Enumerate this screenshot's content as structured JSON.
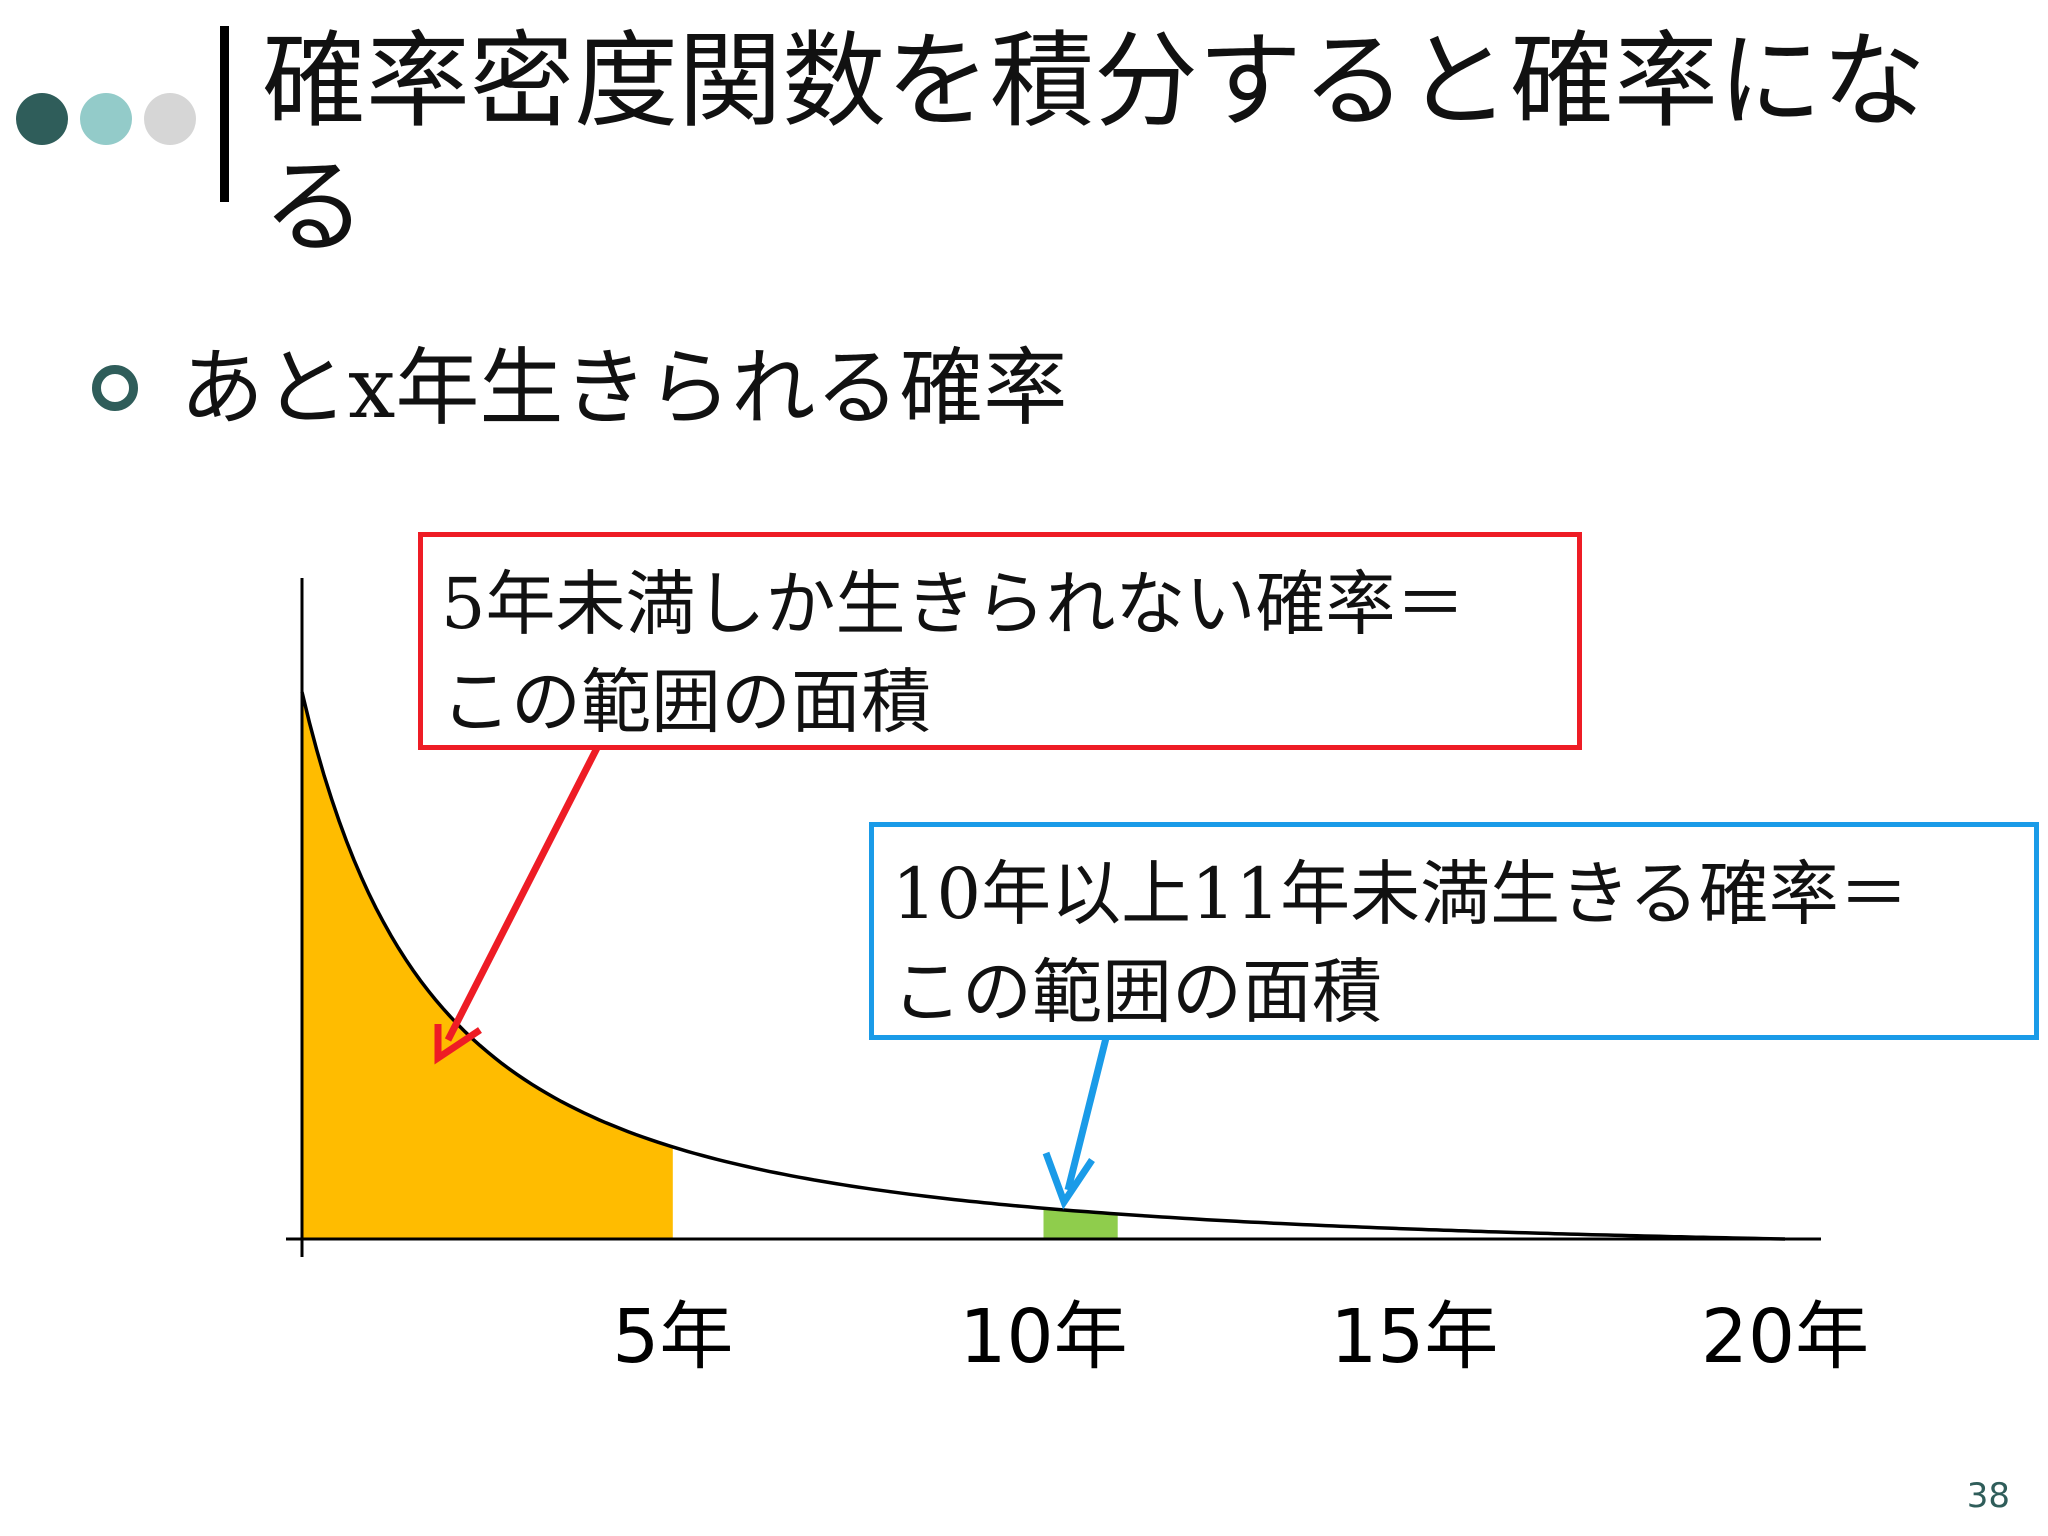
{
  "slide": {
    "title": "確率密度関数を積分すると確率になる",
    "bullet": "あとx年生きられる確率",
    "page_number": "38"
  },
  "decor": {
    "dot_colors": [
      "#2f5d5a",
      "#93cbc9",
      "#d6d6d6"
    ],
    "accent": "#2f5d5a"
  },
  "callouts": {
    "red": {
      "line1": "5年未満しか生きられない確率＝",
      "line2": "この範囲の面積",
      "border_color": "#ee1c25"
    },
    "blue": {
      "line1": "10年以上11年未満生きる確率＝",
      "line2": "この範囲の面積",
      "border_color": "#1a9be8"
    }
  },
  "chart_data": {
    "type": "area",
    "curve": "decreasing probability density of remaining years",
    "x_range": [
      0,
      20
    ],
    "x_ticks": [
      {
        "value": 5,
        "label": "5年"
      },
      {
        "value": 10,
        "label": "10年"
      },
      {
        "value": 15,
        "label": "15年"
      },
      {
        "value": 20,
        "label": "20年"
      }
    ],
    "shaded_regions": [
      {
        "from": 0,
        "to": 5,
        "color": "#ffbc00"
      },
      {
        "from": 10,
        "to": 11,
        "color": "#8fcd4c"
      }
    ]
  }
}
